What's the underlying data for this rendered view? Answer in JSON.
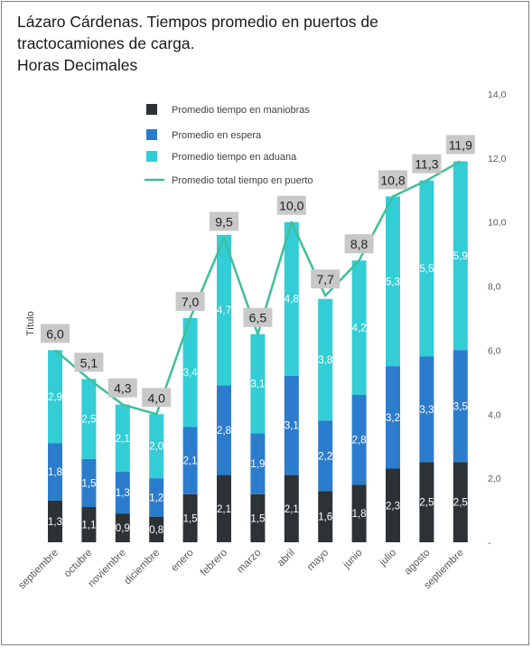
{
  "title_lines": [
    "Lázaro Cárdenas. Tiempos promedio en puertos de",
    "tractocamiones de carga.",
    "Horas Decimales"
  ],
  "colors": {
    "maniobras": "#2d3236",
    "espera": "#2b7ccc",
    "aduana": "#33cdd6",
    "total": "#3fbf9a",
    "label_box": "#c8c8c8",
    "axis_text": "#595959"
  },
  "chart_data": {
    "type": "bar",
    "stacked": true,
    "categories": [
      "septiembre",
      "octubre",
      "noviembre",
      "diciembre",
      "enero",
      "febrero",
      "marzo",
      "abril",
      "mayo",
      "junio",
      "julio",
      "agosto",
      "septiembre"
    ],
    "series": [
      {
        "name": "Promedio tiempo en maniobras",
        "values": [
          1.3,
          1.1,
          0.9,
          0.8,
          1.5,
          2.1,
          1.5,
          2.1,
          1.6,
          1.8,
          2.3,
          2.5,
          2.5
        ]
      },
      {
        "name": "Promedio en espera",
        "values": [
          1.8,
          1.5,
          1.3,
          1.2,
          2.1,
          2.8,
          1.9,
          3.1,
          2.2,
          2.8,
          3.2,
          3.3,
          3.5
        ]
      },
      {
        "name": "Promedio tiempo en aduana",
        "values": [
          2.9,
          2.5,
          2.1,
          2.0,
          3.4,
          4.7,
          3.1,
          4.8,
          3.8,
          4.2,
          5.3,
          5.5,
          5.9
        ]
      },
      {
        "name": "Promedio total tiempo en puerto",
        "type": "line",
        "values": [
          6.0,
          5.1,
          4.3,
          4.0,
          7.0,
          9.5,
          6.5,
          10.0,
          7.7,
          8.8,
          10.8,
          11.3,
          11.9
        ]
      }
    ],
    "ylabel": "Título",
    "ylim": [
      0,
      14
    ],
    "y_ticks": [
      "-",
      "2,0",
      "4,0",
      "6,0",
      "8,0",
      "10,0",
      "12,0",
      "14,0"
    ],
    "y_axis_side": "right",
    "grid": false,
    "legend_position": "top-left inside plot",
    "decimal_separator": ","
  }
}
